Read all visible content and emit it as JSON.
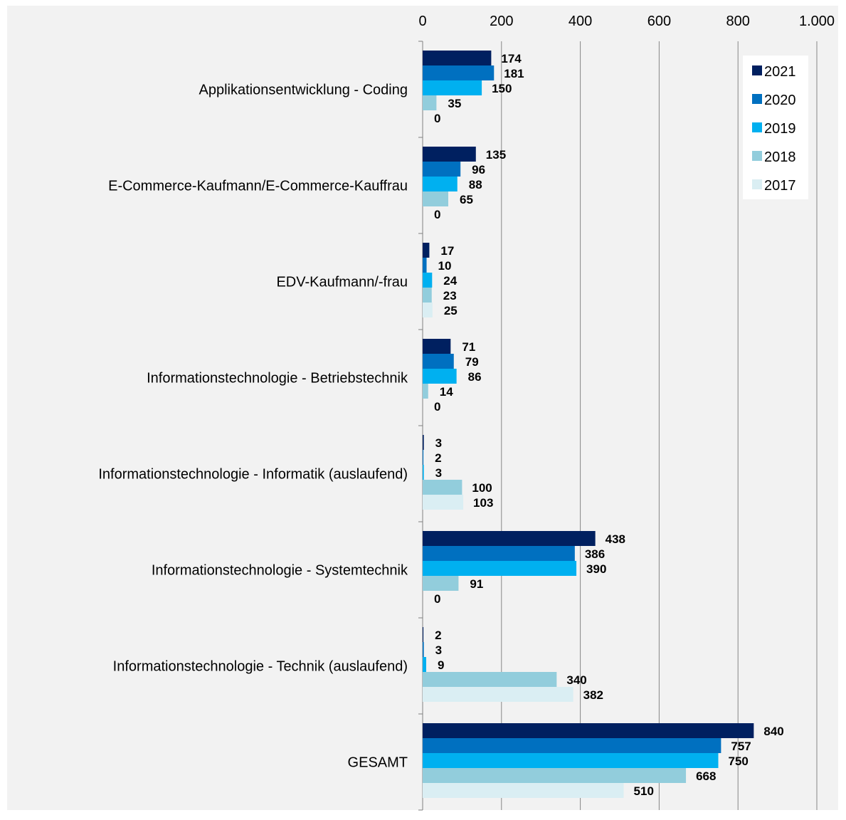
{
  "chart_data": {
    "type": "bar",
    "orientation": "horizontal",
    "categories": [
      "Applikationsentwicklung - Coding",
      "E-Commerce-Kaufmann/E-Commerce-Kauffrau",
      "EDV-Kaufmann/-frau",
      "Informationstechnologie - Betriebstechnik",
      "Informationstechnologie - Informatik (auslaufend)",
      "Informationstechnologie - Systemtechnik",
      "Informationstechnologie - Technik (auslaufend)",
      "GESAMT"
    ],
    "series": [
      {
        "name": "2021",
        "color": "#002060",
        "values": [
          174,
          135,
          17,
          71,
          3,
          438,
          2,
          840
        ],
        "labels": [
          "174",
          "135",
          "17",
          "71",
          "3",
          "438",
          "2",
          "840"
        ]
      },
      {
        "name": "2020",
        "color": "#0070C0",
        "values": [
          181,
          96,
          10,
          79,
          2,
          386,
          3,
          757
        ],
        "labels": [
          "181",
          "96",
          "10",
          "79",
          "2",
          "386",
          "3",
          "757"
        ]
      },
      {
        "name": "2019",
        "color": "#00B0F0",
        "values": [
          150,
          88,
          24,
          86,
          3,
          390,
          9,
          750
        ],
        "labels": [
          "150",
          "88",
          "24",
          "86",
          "3",
          "390",
          "9",
          "750"
        ]
      },
      {
        "name": "2018",
        "color": "#92CDDC",
        "values": [
          35,
          65,
          23,
          14,
          100,
          91,
          340,
          668
        ],
        "labels": [
          "35",
          "65",
          "23",
          "14",
          "100",
          "91",
          "340",
          "668"
        ]
      },
      {
        "name": "2017",
        "color": "#DAEEF3",
        "values": [
          0,
          0,
          25,
          0,
          103,
          0,
          382,
          510
        ],
        "labels": [
          "0",
          "0",
          "25",
          "0",
          "103",
          "0",
          "382",
          "510"
        ]
      }
    ],
    "xaxis": {
      "position": "top",
      "range": [
        0,
        1000
      ],
      "ticks": [
        0,
        200,
        400,
        600,
        800,
        1000
      ],
      "tick_labels": [
        "0",
        "200",
        "400",
        "600",
        "800",
        "1.000"
      ]
    },
    "grid": true,
    "legend": {
      "position": "top-right",
      "entries": [
        "2021",
        "2020",
        "2019",
        "2018",
        "2017"
      ]
    },
    "background": "#F2F2F2"
  }
}
